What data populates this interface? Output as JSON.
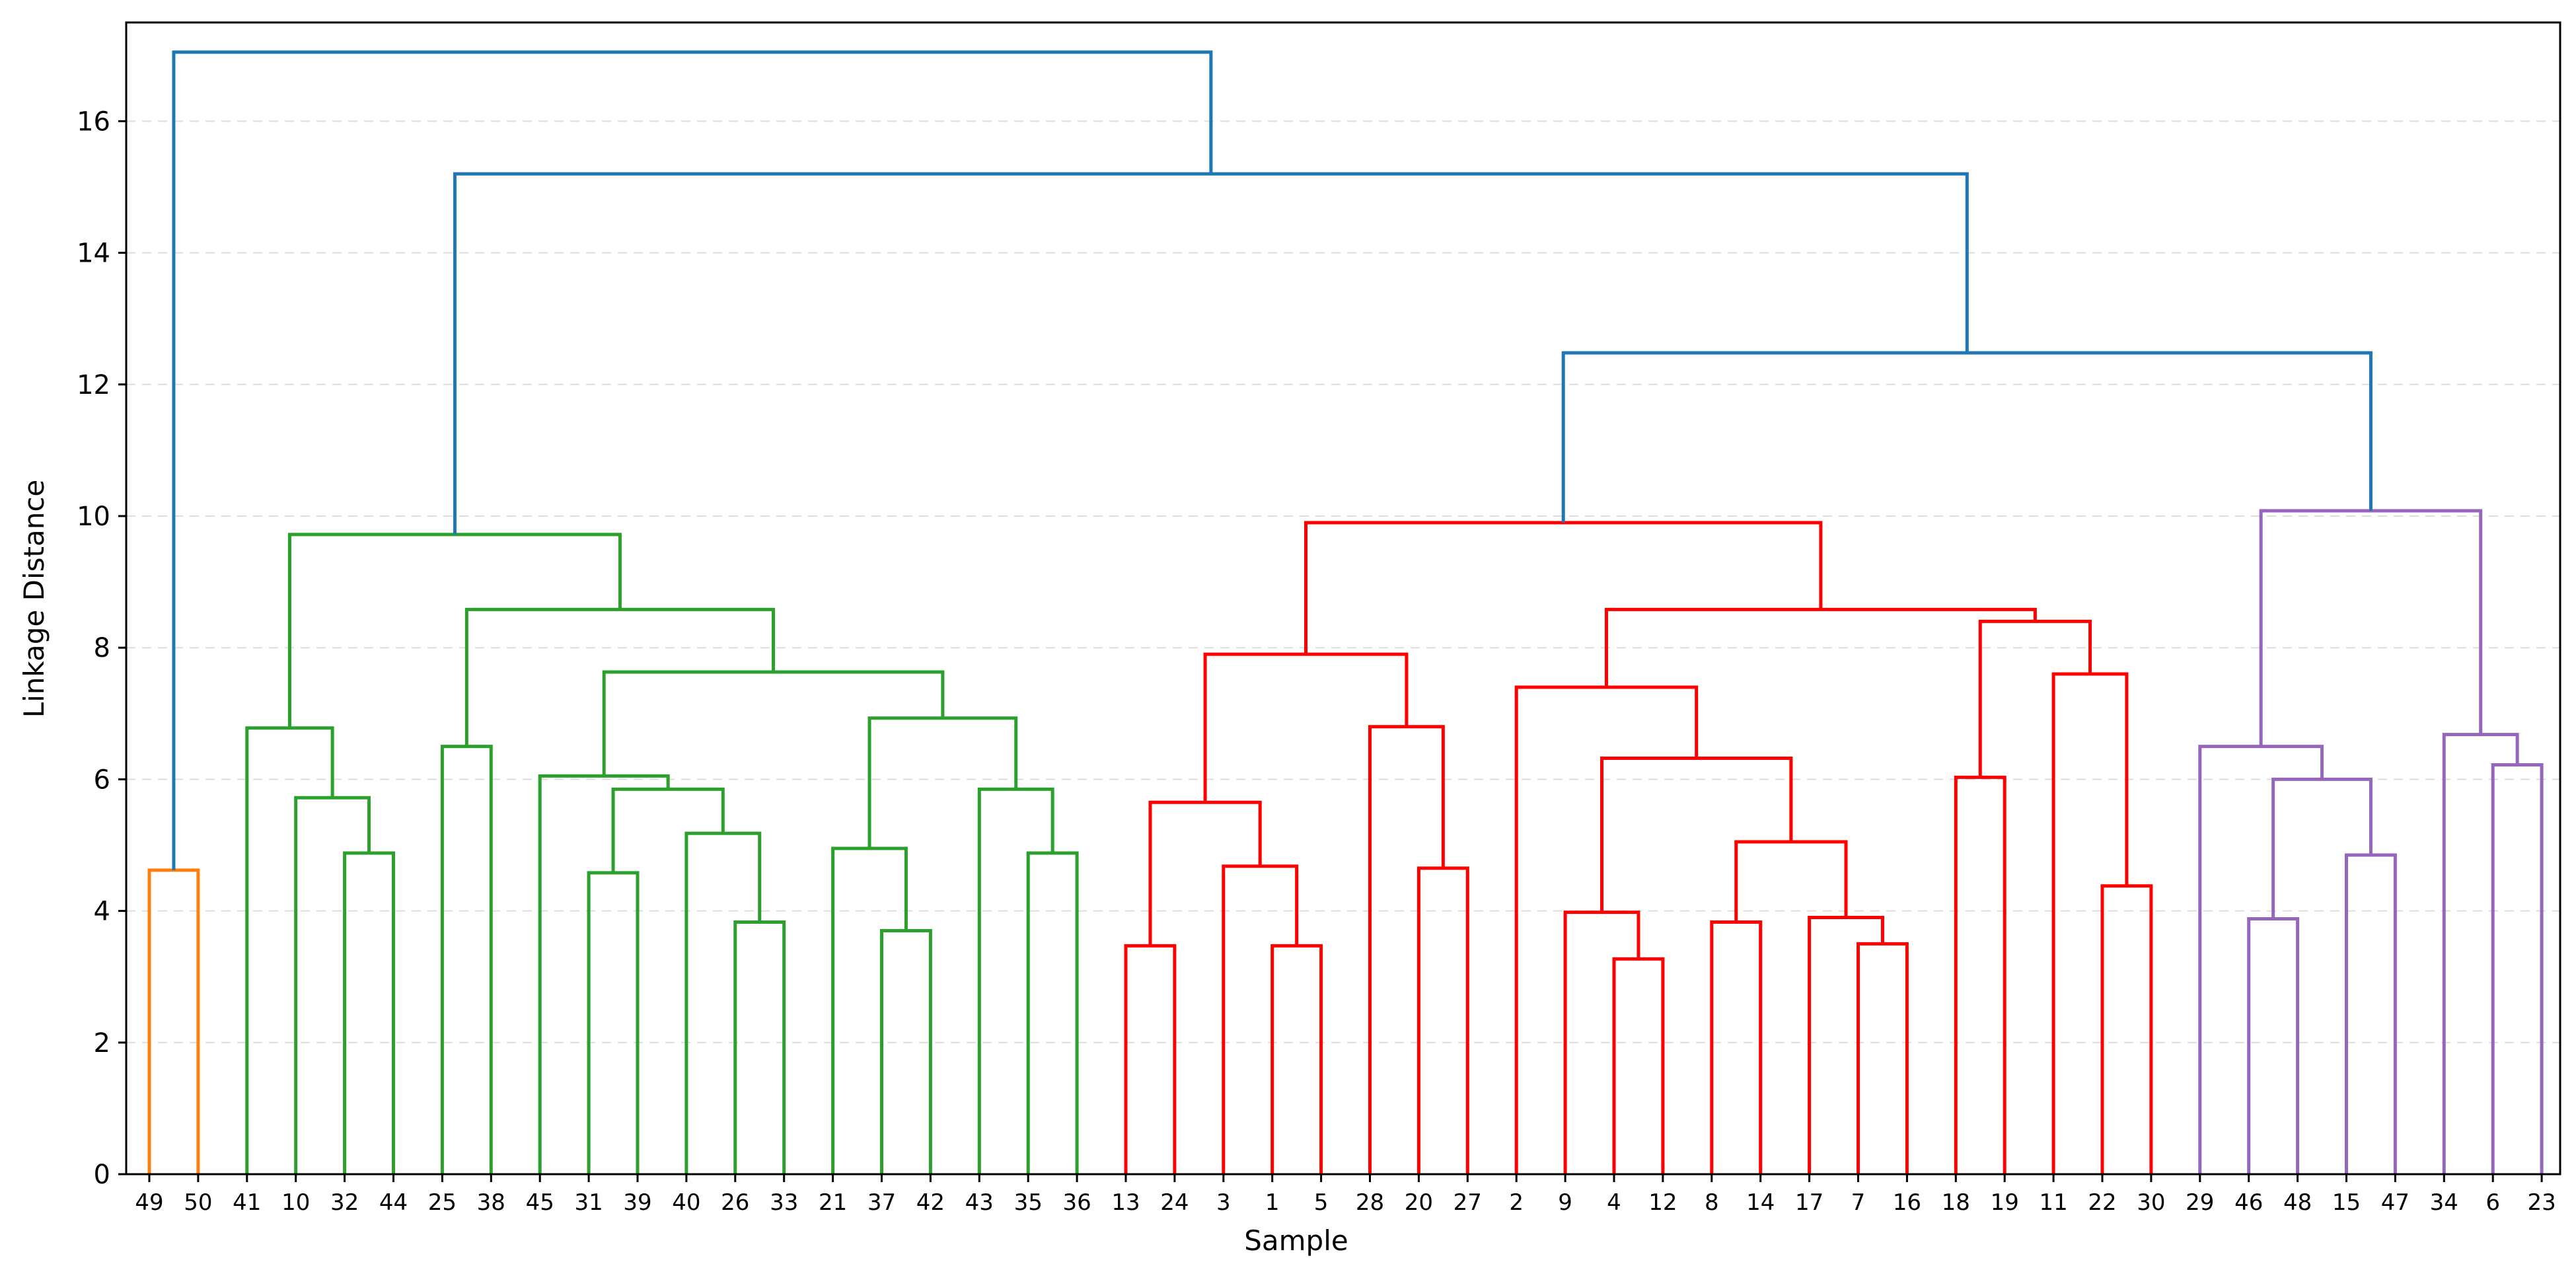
{
  "chart_data": {
    "type": "dendrogram",
    "title": "",
    "xlabel": "Sample",
    "ylabel": "Linkage Distance",
    "ylim": [
      0,
      17.5
    ],
    "yticks": [
      0,
      2,
      4,
      6,
      8,
      10,
      12,
      14,
      16
    ],
    "grid": "horizontal dashed",
    "leaves": [
      "49",
      "50",
      "41",
      "10",
      "32",
      "44",
      "25",
      "38",
      "45",
      "31",
      "39",
      "40",
      "26",
      "33",
      "21",
      "37",
      "42",
      "43",
      "35",
      "36",
      "13",
      "24",
      "3",
      "1",
      "5",
      "28",
      "20",
      "27",
      "2",
      "9",
      "4",
      "12",
      "8",
      "14",
      "17",
      "7",
      "16",
      "18",
      "19",
      "11",
      "22",
      "30",
      "29",
      "46",
      "48",
      "15",
      "47",
      "34",
      "6",
      "23"
    ],
    "colors": {
      "above_threshold": "#1f77b4",
      "cluster_orange": "#ff7f0e",
      "cluster_green": "#2ca02c",
      "cluster_red": "#ff0000",
      "cluster_purple": "#9467bd"
    },
    "links": [
      {
        "id": "n1",
        "left": "49",
        "right": "50",
        "height": 4.62,
        "color": "#ff7f0e"
      },
      {
        "id": "n2",
        "left": "32",
        "right": "44",
        "height": 4.88,
        "color": "#2ca02c"
      },
      {
        "id": "n3",
        "left": "10",
        "right": "n2",
        "height": 5.72,
        "color": "#2ca02c"
      },
      {
        "id": "n4",
        "left": "41",
        "right": "n3",
        "height": 6.78,
        "color": "#2ca02c"
      },
      {
        "id": "n5",
        "left": "25",
        "right": "38",
        "height": 6.5,
        "color": "#2ca02c"
      },
      {
        "id": "n6",
        "left": "31",
        "right": "39",
        "height": 4.58,
        "color": "#2ca02c"
      },
      {
        "id": "n7",
        "left": "26",
        "right": "33",
        "height": 3.83,
        "color": "#2ca02c"
      },
      {
        "id": "n8",
        "left": "40",
        "right": "n7",
        "height": 5.18,
        "color": "#2ca02c"
      },
      {
        "id": "n9",
        "left": "n6",
        "right": "n8",
        "height": 5.85,
        "color": "#2ca02c"
      },
      {
        "id": "n10",
        "left": "45",
        "right": "n9",
        "height": 6.05,
        "color": "#2ca02c"
      },
      {
        "id": "n11",
        "left": "37",
        "right": "42",
        "height": 3.7,
        "color": "#2ca02c"
      },
      {
        "id": "n12",
        "left": "21",
        "right": "n11",
        "height": 4.95,
        "color": "#2ca02c"
      },
      {
        "id": "n13",
        "left": "35",
        "right": "36",
        "height": 4.88,
        "color": "#2ca02c"
      },
      {
        "id": "n14",
        "left": "43",
        "right": "n13",
        "height": 5.85,
        "color": "#2ca02c"
      },
      {
        "id": "n15",
        "left": "n12",
        "right": "n14",
        "height": 6.93,
        "color": "#2ca02c"
      },
      {
        "id": "n16",
        "left": "n10",
        "right": "n15",
        "height": 7.63,
        "color": "#2ca02c"
      },
      {
        "id": "n17",
        "left": "n5",
        "right": "n16",
        "height": 8.58,
        "color": "#2ca02c"
      },
      {
        "id": "n18",
        "left": "n4",
        "right": "n17",
        "height": 9.72,
        "color": "#2ca02c"
      },
      {
        "id": "n19",
        "left": "13",
        "right": "24",
        "height": 3.47,
        "color": "#ff0000"
      },
      {
        "id": "n20",
        "left": "1",
        "right": "5",
        "height": 3.47,
        "color": "#ff0000"
      },
      {
        "id": "n21",
        "left": "3",
        "right": "n20",
        "height": 4.68,
        "color": "#ff0000"
      },
      {
        "id": "n22",
        "left": "n19",
        "right": "n21",
        "height": 5.65,
        "color": "#ff0000"
      },
      {
        "id": "n23",
        "left": "20",
        "right": "27",
        "height": 4.65,
        "color": "#ff0000"
      },
      {
        "id": "n24",
        "left": "28",
        "right": "n23",
        "height": 6.8,
        "color": "#ff0000"
      },
      {
        "id": "n25",
        "left": "n22",
        "right": "n24",
        "height": 7.9,
        "color": "#ff0000"
      },
      {
        "id": "n26",
        "left": "4",
        "right": "12",
        "height": 3.27,
        "color": "#ff0000"
      },
      {
        "id": "n27",
        "left": "9",
        "right": "n26",
        "height": 3.98,
        "color": "#ff0000"
      },
      {
        "id": "n28",
        "left": "8",
        "right": "14",
        "height": 3.83,
        "color": "#ff0000"
      },
      {
        "id": "n29",
        "left": "7",
        "right": "16",
        "height": 3.5,
        "color": "#ff0000"
      },
      {
        "id": "n30",
        "left": "17",
        "right": "n29",
        "height": 3.9,
        "color": "#ff0000"
      },
      {
        "id": "n31",
        "left": "n28",
        "right": "n30",
        "height": 5.05,
        "color": "#ff0000"
      },
      {
        "id": "n32",
        "left": "n27",
        "right": "n31",
        "height": 6.32,
        "color": "#ff0000"
      },
      {
        "id": "n33",
        "left": "2",
        "right": "n32",
        "height": 7.4,
        "color": "#ff0000"
      },
      {
        "id": "n34",
        "left": "18",
        "right": "19",
        "height": 6.03,
        "color": "#ff0000"
      },
      {
        "id": "n35",
        "left": "22",
        "right": "30",
        "height": 4.38,
        "color": "#ff0000"
      },
      {
        "id": "n36",
        "left": "11",
        "right": "n35",
        "height": 7.6,
        "color": "#ff0000"
      },
      {
        "id": "n37",
        "left": "n34",
        "right": "n36",
        "height": 8.4,
        "color": "#ff0000"
      },
      {
        "id": "n38",
        "left": "n33",
        "right": "n37",
        "height": 8.58,
        "color": "#ff0000"
      },
      {
        "id": "n39",
        "left": "n25",
        "right": "n38",
        "height": 9.9,
        "color": "#ff0000"
      },
      {
        "id": "n40",
        "left": "15",
        "right": "47",
        "height": 4.85,
        "color": "#9467bd"
      },
      {
        "id": "n41",
        "left": "46",
        "right": "48",
        "height": 3.88,
        "color": "#9467bd"
      },
      {
        "id": "n42",
        "left": "n41",
        "right": "n40",
        "height": 6.0,
        "color": "#9467bd"
      },
      {
        "id": "n43",
        "left": "29",
        "right": "n42",
        "height": 6.5,
        "color": "#9467bd"
      },
      {
        "id": "n44",
        "left": "6",
        "right": "23",
        "height": 6.22,
        "color": "#9467bd"
      },
      {
        "id": "n45",
        "left": "34",
        "right": "n44",
        "height": 6.68,
        "color": "#9467bd"
      },
      {
        "id": "n46",
        "left": "n43",
        "right": "n45",
        "height": 10.08,
        "color": "#9467bd"
      },
      {
        "id": "n47",
        "left": "n39",
        "right": "n46",
        "height": 12.48,
        "color": "#1f77b4"
      },
      {
        "id": "n48",
        "left": "n18",
        "right": "n47",
        "height": 15.2,
        "color": "#1f77b4"
      },
      {
        "id": "n49",
        "left": "n1",
        "right": "n48",
        "height": 17.05,
        "color": "#1f77b4"
      }
    ]
  }
}
